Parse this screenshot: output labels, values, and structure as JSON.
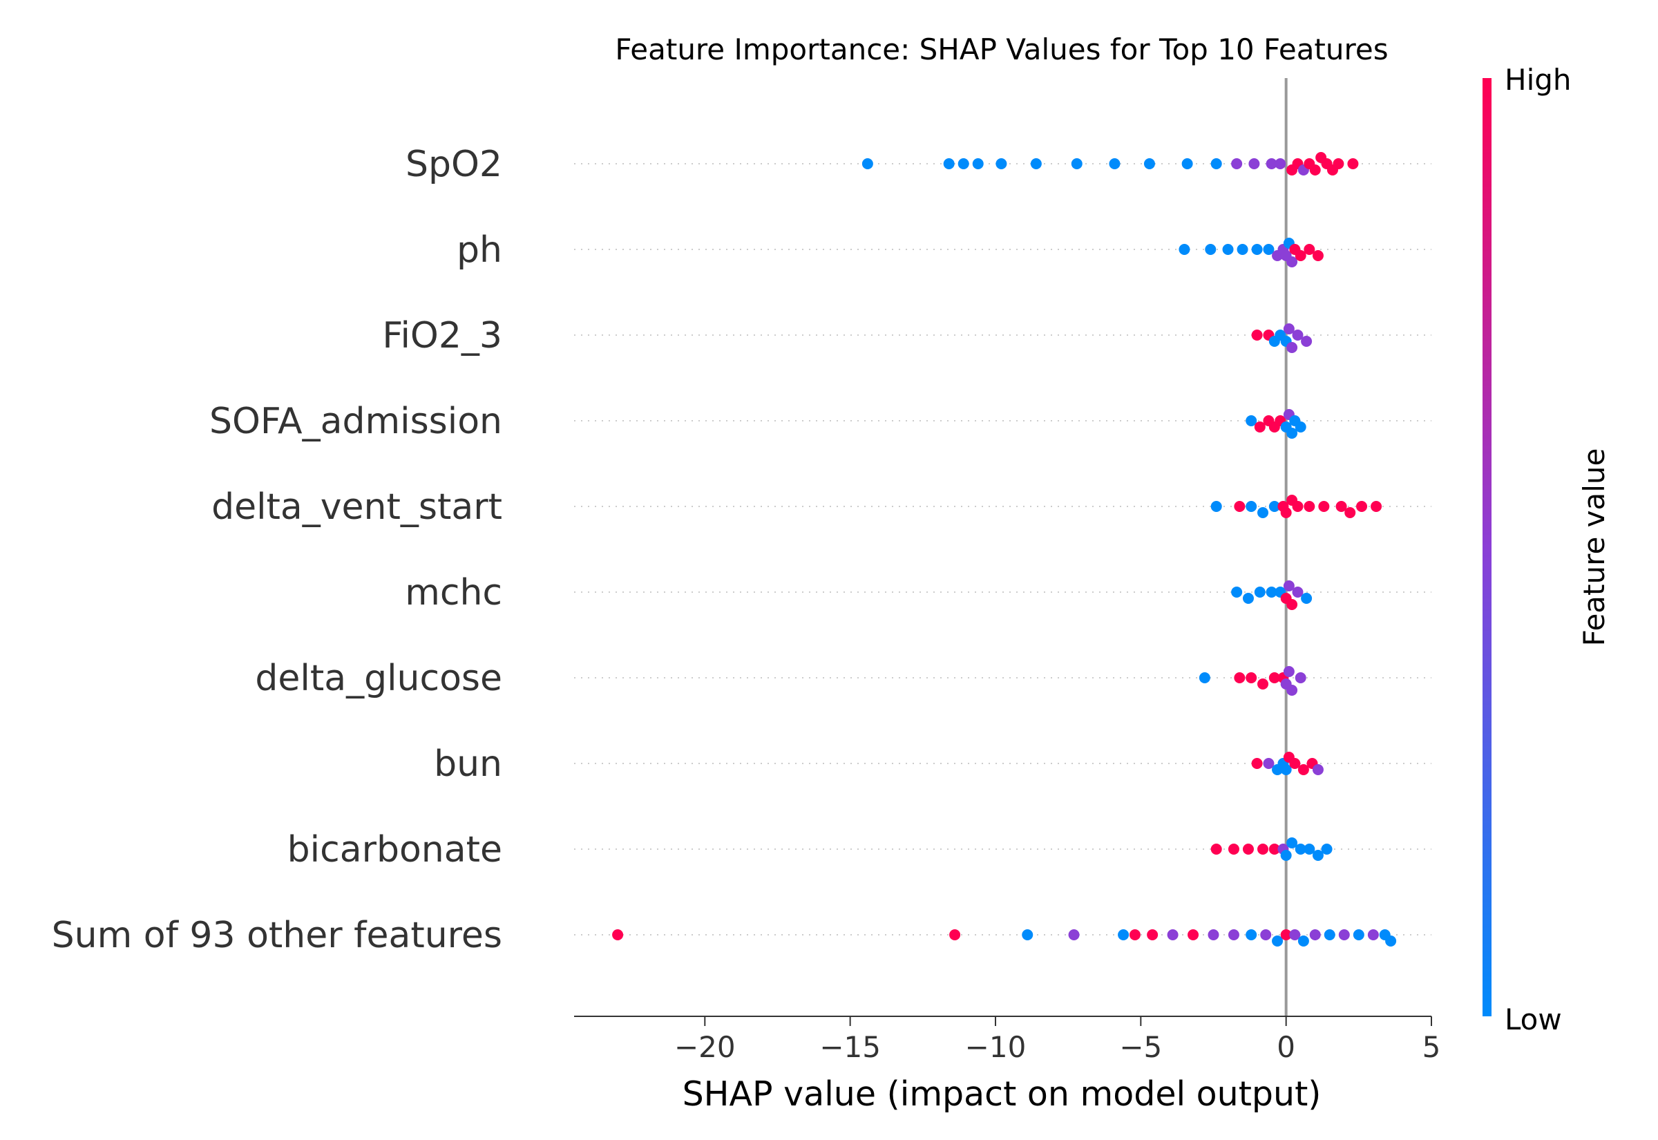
{
  "chart_data": {
    "type": "scatter",
    "subtype": "shap-beeswarm",
    "title": "Feature Importance: SHAP Values for Top 10 Features",
    "xlabel": "SHAP value (impact on model output)",
    "xlim": [
      -24.5,
      5
    ],
    "x_ticks": [
      -20,
      -15,
      -10,
      -5,
      0,
      5
    ],
    "x_tick_labels": [
      "−20",
      "−15",
      "−10",
      "−5",
      "0",
      "5"
    ],
    "colorbar": {
      "title": "Feature value",
      "high_label": "High",
      "low_label": "Low"
    },
    "colors": {
      "low": "#008bfb",
      "mid": "#8b3fd6",
      "high": "#ff0052",
      "zero_line": "#999999",
      "axis": "#333333",
      "grid": "#cccccc"
    },
    "features": [
      {
        "name": "SpO2",
        "points": [
          [
            -14.4,
            "low"
          ],
          [
            -11.6,
            "low"
          ],
          [
            -11.1,
            "low"
          ],
          [
            -10.6,
            "low"
          ],
          [
            -9.8,
            "low"
          ],
          [
            -8.6,
            "low"
          ],
          [
            -7.2,
            "low"
          ],
          [
            -5.9,
            "low"
          ],
          [
            -4.7,
            "low"
          ],
          [
            -3.4,
            "low"
          ],
          [
            -2.4,
            "low"
          ],
          [
            -1.7,
            "mid"
          ],
          [
            -1.1,
            "mid"
          ],
          [
            -0.5,
            "mid"
          ],
          [
            -0.2,
            "mid"
          ],
          [
            0.2,
            "high"
          ],
          [
            0.4,
            "high"
          ],
          [
            0.6,
            "mid"
          ],
          [
            0.8,
            "high"
          ],
          [
            1.0,
            "high"
          ],
          [
            1.2,
            "high"
          ],
          [
            1.4,
            "high"
          ],
          [
            1.6,
            "high"
          ],
          [
            1.8,
            "high"
          ],
          [
            2.3,
            "high"
          ]
        ]
      },
      {
        "name": "ph",
        "points": [
          [
            -3.5,
            "low"
          ],
          [
            -2.6,
            "low"
          ],
          [
            -2.0,
            "low"
          ],
          [
            -1.5,
            "low"
          ],
          [
            -1.0,
            "low"
          ],
          [
            -0.6,
            "low"
          ],
          [
            -0.3,
            "mid"
          ],
          [
            -0.1,
            "mid"
          ],
          [
            0.0,
            "mid"
          ],
          [
            0.1,
            "low"
          ],
          [
            0.2,
            "mid"
          ],
          [
            0.3,
            "high"
          ],
          [
            0.5,
            "high"
          ],
          [
            0.8,
            "high"
          ],
          [
            1.1,
            "high"
          ]
        ]
      },
      {
        "name": "FiO2_3",
        "points": [
          [
            -1.0,
            "high"
          ],
          [
            -0.6,
            "high"
          ],
          [
            -0.4,
            "low"
          ],
          [
            -0.2,
            "low"
          ],
          [
            0.0,
            "low"
          ],
          [
            0.1,
            "mid"
          ],
          [
            0.2,
            "mid"
          ],
          [
            0.4,
            "mid"
          ],
          [
            0.7,
            "mid"
          ]
        ]
      },
      {
        "name": "SOFA_admission",
        "points": [
          [
            -1.2,
            "low"
          ],
          [
            -0.9,
            "high"
          ],
          [
            -0.6,
            "high"
          ],
          [
            -0.4,
            "high"
          ],
          [
            -0.2,
            "high"
          ],
          [
            0.0,
            "low"
          ],
          [
            0.1,
            "mid"
          ],
          [
            0.2,
            "low"
          ],
          [
            0.3,
            "low"
          ],
          [
            0.5,
            "low"
          ]
        ]
      },
      {
        "name": "delta_vent_start",
        "points": [
          [
            -2.4,
            "low"
          ],
          [
            -1.6,
            "high"
          ],
          [
            -1.2,
            "low"
          ],
          [
            -0.8,
            "low"
          ],
          [
            -0.4,
            "low"
          ],
          [
            -0.1,
            "high"
          ],
          [
            0.0,
            "high"
          ],
          [
            0.2,
            "high"
          ],
          [
            0.4,
            "high"
          ],
          [
            0.8,
            "high"
          ],
          [
            1.3,
            "high"
          ],
          [
            1.9,
            "high"
          ],
          [
            2.2,
            "high"
          ],
          [
            2.6,
            "high"
          ],
          [
            3.1,
            "high"
          ]
        ]
      },
      {
        "name": "mchc",
        "points": [
          [
            -1.7,
            "low"
          ],
          [
            -1.3,
            "low"
          ],
          [
            -0.9,
            "low"
          ],
          [
            -0.5,
            "low"
          ],
          [
            -0.2,
            "low"
          ],
          [
            0.0,
            "high"
          ],
          [
            0.1,
            "mid"
          ],
          [
            0.2,
            "high"
          ],
          [
            0.4,
            "mid"
          ],
          [
            0.7,
            "low"
          ]
        ]
      },
      {
        "name": "delta_glucose",
        "points": [
          [
            -2.8,
            "low"
          ],
          [
            -1.6,
            "high"
          ],
          [
            -1.2,
            "high"
          ],
          [
            -0.8,
            "high"
          ],
          [
            -0.4,
            "high"
          ],
          [
            -0.1,
            "high"
          ],
          [
            0.0,
            "mid"
          ],
          [
            0.1,
            "mid"
          ],
          [
            0.2,
            "mid"
          ],
          [
            0.5,
            "mid"
          ]
        ]
      },
      {
        "name": "bun",
        "points": [
          [
            -1.0,
            "high"
          ],
          [
            -0.6,
            "mid"
          ],
          [
            -0.3,
            "low"
          ],
          [
            -0.1,
            "low"
          ],
          [
            0.0,
            "low"
          ],
          [
            0.1,
            "high"
          ],
          [
            0.3,
            "high"
          ],
          [
            0.6,
            "high"
          ],
          [
            0.9,
            "high"
          ],
          [
            1.1,
            "mid"
          ]
        ]
      },
      {
        "name": "bicarbonate",
        "points": [
          [
            -2.4,
            "high"
          ],
          [
            -1.8,
            "high"
          ],
          [
            -1.3,
            "high"
          ],
          [
            -0.8,
            "high"
          ],
          [
            -0.4,
            "high"
          ],
          [
            -0.1,
            "mid"
          ],
          [
            0.0,
            "low"
          ],
          [
            0.2,
            "low"
          ],
          [
            0.5,
            "low"
          ],
          [
            0.8,
            "low"
          ],
          [
            1.1,
            "low"
          ],
          [
            1.4,
            "low"
          ]
        ]
      },
      {
        "name": "Sum of 93 other features",
        "points": [
          [
            -23.0,
            "high"
          ],
          [
            -11.4,
            "high"
          ],
          [
            -8.9,
            "low"
          ],
          [
            -7.3,
            "mid"
          ],
          [
            -5.6,
            "low"
          ],
          [
            -5.2,
            "high"
          ],
          [
            -4.6,
            "high"
          ],
          [
            -3.9,
            "mid"
          ],
          [
            -3.2,
            "high"
          ],
          [
            -2.5,
            "mid"
          ],
          [
            -1.8,
            "mid"
          ],
          [
            -1.2,
            "low"
          ],
          [
            -0.7,
            "mid"
          ],
          [
            -0.3,
            "low"
          ],
          [
            0.0,
            "high"
          ],
          [
            0.3,
            "mid"
          ],
          [
            0.6,
            "low"
          ],
          [
            1.0,
            "mid"
          ],
          [
            1.5,
            "low"
          ],
          [
            2.0,
            "mid"
          ],
          [
            2.5,
            "low"
          ],
          [
            3.0,
            "mid"
          ],
          [
            3.4,
            "low"
          ],
          [
            3.6,
            "low"
          ]
        ]
      }
    ]
  }
}
